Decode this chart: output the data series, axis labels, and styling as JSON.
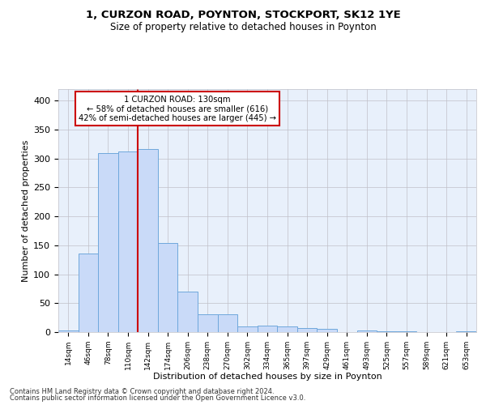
{
  "title1": "1, CURZON ROAD, POYNTON, STOCKPORT, SK12 1YE",
  "title2": "Size of property relative to detached houses in Poynton",
  "xlabel": "Distribution of detached houses by size in Poynton",
  "ylabel": "Number of detached properties",
  "categories": [
    "14sqm",
    "46sqm",
    "78sqm",
    "110sqm",
    "142sqm",
    "174sqm",
    "206sqm",
    "238sqm",
    "270sqm",
    "302sqm",
    "334sqm",
    "365sqm",
    "397sqm",
    "429sqm",
    "461sqm",
    "493sqm",
    "525sqm",
    "557sqm",
    "589sqm",
    "621sqm",
    "653sqm"
  ],
  "values": [
    3,
    136,
    309,
    312,
    317,
    154,
    70,
    31,
    31,
    10,
    11,
    10,
    7,
    6,
    0,
    3,
    2,
    1,
    0,
    0,
    1
  ],
  "bar_color": "#c9daf8",
  "bar_edge_color": "#6fa8dc",
  "vline_x": 3,
  "vline_color": "#cc0000",
  "annotation_text": "1 CURZON ROAD: 130sqm\n← 58% of detached houses are smaller (616)\n42% of semi-detached houses are larger (445) →",
  "annotation_box_color": "#ffffff",
  "annotation_box_edge": "#cc0000",
  "ylim": [
    0,
    420
  ],
  "yticks": [
    0,
    50,
    100,
    150,
    200,
    250,
    300,
    350,
    400
  ],
  "grid_color": "#c0c0c8",
  "bg_color": "#ffffff",
  "axes_bg": "#e8f0fb",
  "footer1": "Contains HM Land Registry data © Crown copyright and database right 2024.",
  "footer2": "Contains public sector information licensed under the Open Government Licence v3.0."
}
